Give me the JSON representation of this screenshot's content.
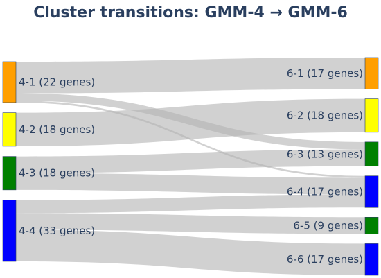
{
  "title": "Cluster transitions: GMM-4 → GMM-6",
  "chart_data": {
    "type": "sankey",
    "source_nodes": [
      {
        "id": "4-1",
        "label": "4-1 (22 genes)",
        "value": 22,
        "color": "#ff9f00"
      },
      {
        "id": "4-2",
        "label": "4-2 (18 genes)",
        "value": 18,
        "color": "#ffff00"
      },
      {
        "id": "4-3",
        "label": "4-3 (18 genes)",
        "value": 18,
        "color": "#008000"
      },
      {
        "id": "4-4",
        "label": "4-4 (33 genes)",
        "value": 33,
        "color": "#0000ff"
      }
    ],
    "target_nodes": [
      {
        "id": "6-1",
        "label": "6-1 (17 genes)",
        "value": 17,
        "color": "#ff9f00"
      },
      {
        "id": "6-2",
        "label": "6-2 (18 genes)",
        "value": 18,
        "color": "#ffff00"
      },
      {
        "id": "6-3",
        "label": "6-3 (13 genes)",
        "value": 13,
        "color": "#008000"
      },
      {
        "id": "6-4",
        "label": "6-4 (17 genes)",
        "value": 17,
        "color": "#0000ff"
      },
      {
        "id": "6-5",
        "label": "6-5 (9 genes)",
        "value": 9,
        "color": "#008000"
      },
      {
        "id": "6-6",
        "label": "6-6 (17 genes)",
        "value": 17,
        "color": "#0000ff"
      }
    ],
    "links": [
      {
        "source": "4-1",
        "target": "6-1",
        "value": 17
      },
      {
        "source": "4-1",
        "target": "6-3",
        "value": 4
      },
      {
        "source": "4-1",
        "target": "6-4",
        "value": 1
      },
      {
        "source": "4-2",
        "target": "6-2",
        "value": 18
      },
      {
        "source": "4-3",
        "target": "6-3",
        "value": 9
      },
      {
        "source": "4-3",
        "target": "6-4",
        "value": 9
      },
      {
        "source": "4-4",
        "target": "6-4",
        "value": 7
      },
      {
        "source": "4-4",
        "target": "6-5",
        "value": 9
      },
      {
        "source": "4-4",
        "target": "6-6",
        "value": 17
      }
    ]
  }
}
